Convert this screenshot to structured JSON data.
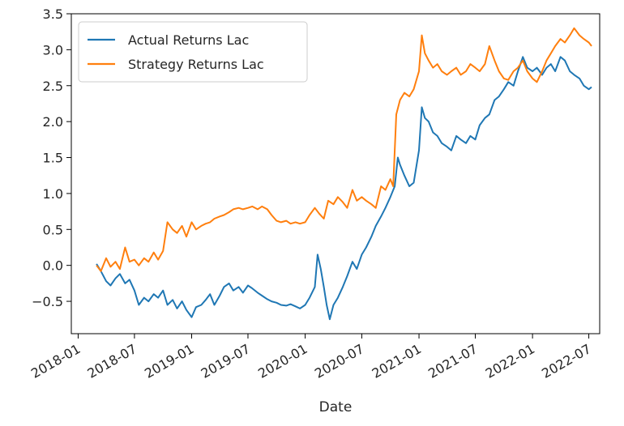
{
  "chart_data": {
    "type": "line",
    "title": "",
    "xlabel": "Date",
    "ylabel": "",
    "xlim": [
      "2017-12-10",
      "2022-08-05"
    ],
    "ylim": [
      -0.95,
      3.5
    ],
    "x_ticks": [
      "2018-01",
      "2018-07",
      "2019-01",
      "2019-07",
      "2020-01",
      "2020-07",
      "2021-01",
      "2021-07",
      "2022-01",
      "2022-07"
    ],
    "y_ticks": [
      "-0.5",
      "0.0",
      "0.5",
      "1.0",
      "1.5",
      "2.0",
      "2.5",
      "3.0",
      "3.5"
    ],
    "grid": false,
    "legend_position": "top-left",
    "series": [
      {
        "name": "Actual Returns Lac",
        "color": "#1f77b4",
        "points": [
          [
            "2018-03-01",
            0.02
          ],
          [
            "2018-03-15",
            -0.08
          ],
          [
            "2018-04-01",
            -0.22
          ],
          [
            "2018-04-15",
            -0.28
          ],
          [
            "2018-05-01",
            -0.18
          ],
          [
            "2018-05-15",
            -0.12
          ],
          [
            "2018-06-01",
            -0.25
          ],
          [
            "2018-06-15",
            -0.2
          ],
          [
            "2018-07-01",
            -0.35
          ],
          [
            "2018-07-15",
            -0.55
          ],
          [
            "2018-08-01",
            -0.45
          ],
          [
            "2018-08-15",
            -0.5
          ],
          [
            "2018-09-01",
            -0.4
          ],
          [
            "2018-09-15",
            -0.45
          ],
          [
            "2018-10-01",
            -0.35
          ],
          [
            "2018-10-15",
            -0.55
          ],
          [
            "2018-11-01",
            -0.48
          ],
          [
            "2018-11-15",
            -0.6
          ],
          [
            "2018-12-01",
            -0.5
          ],
          [
            "2018-12-15",
            -0.62
          ],
          [
            "2019-01-01",
            -0.72
          ],
          [
            "2019-01-15",
            -0.58
          ],
          [
            "2019-02-01",
            -0.55
          ],
          [
            "2019-02-15",
            -0.48
          ],
          [
            "2019-03-01",
            -0.4
          ],
          [
            "2019-03-15",
            -0.55
          ],
          [
            "2019-04-01",
            -0.42
          ],
          [
            "2019-04-15",
            -0.3
          ],
          [
            "2019-05-01",
            -0.25
          ],
          [
            "2019-05-15",
            -0.35
          ],
          [
            "2019-06-01",
            -0.3
          ],
          [
            "2019-06-15",
            -0.38
          ],
          [
            "2019-07-01",
            -0.28
          ],
          [
            "2019-07-15",
            -0.32
          ],
          [
            "2019-08-01",
            -0.38
          ],
          [
            "2019-08-15",
            -0.42
          ],
          [
            "2019-09-01",
            -0.47
          ],
          [
            "2019-09-15",
            -0.5
          ],
          [
            "2019-10-01",
            -0.52
          ],
          [
            "2019-10-15",
            -0.55
          ],
          [
            "2019-11-01",
            -0.56
          ],
          [
            "2019-11-15",
            -0.54
          ],
          [
            "2019-12-01",
            -0.57
          ],
          [
            "2019-12-15",
            -0.6
          ],
          [
            "2020-01-01",
            -0.55
          ],
          [
            "2020-01-15",
            -0.45
          ],
          [
            "2020-02-01",
            -0.3
          ],
          [
            "2020-02-10",
            0.15
          ],
          [
            "2020-02-20",
            -0.05
          ],
          [
            "2020-03-01",
            -0.3
          ],
          [
            "2020-03-10",
            -0.55
          ],
          [
            "2020-03-20",
            -0.75
          ],
          [
            "2020-04-01",
            -0.55
          ],
          [
            "2020-04-15",
            -0.45
          ],
          [
            "2020-05-01",
            -0.3
          ],
          [
            "2020-05-15",
            -0.15
          ],
          [
            "2020-06-01",
            0.05
          ],
          [
            "2020-06-15",
            -0.05
          ],
          [
            "2020-07-01",
            0.15
          ],
          [
            "2020-07-15",
            0.25
          ],
          [
            "2020-08-01",
            0.4
          ],
          [
            "2020-08-15",
            0.55
          ],
          [
            "2020-09-01",
            0.68
          ],
          [
            "2020-09-15",
            0.8
          ],
          [
            "2020-10-01",
            0.95
          ],
          [
            "2020-10-15",
            1.1
          ],
          [
            "2020-10-25",
            1.5
          ],
          [
            "2020-11-01",
            1.4
          ],
          [
            "2020-11-15",
            1.25
          ],
          [
            "2020-12-01",
            1.1
          ],
          [
            "2020-12-15",
            1.15
          ],
          [
            "2021-01-01",
            1.6
          ],
          [
            "2021-01-10",
            2.2
          ],
          [
            "2021-01-20",
            2.05
          ],
          [
            "2021-02-01",
            2.0
          ],
          [
            "2021-02-15",
            1.85
          ],
          [
            "2021-03-01",
            1.8
          ],
          [
            "2021-03-15",
            1.7
          ],
          [
            "2021-04-01",
            1.65
          ],
          [
            "2021-04-15",
            1.6
          ],
          [
            "2021-05-01",
            1.8
          ],
          [
            "2021-05-15",
            1.75
          ],
          [
            "2021-06-01",
            1.7
          ],
          [
            "2021-06-15",
            1.8
          ],
          [
            "2021-07-01",
            1.75
          ],
          [
            "2021-07-15",
            1.95
          ],
          [
            "2021-08-01",
            2.05
          ],
          [
            "2021-08-15",
            2.1
          ],
          [
            "2021-09-01",
            2.3
          ],
          [
            "2021-09-15",
            2.35
          ],
          [
            "2021-10-01",
            2.45
          ],
          [
            "2021-10-15",
            2.55
          ],
          [
            "2021-11-01",
            2.5
          ],
          [
            "2021-11-15",
            2.7
          ],
          [
            "2021-12-01",
            2.9
          ],
          [
            "2021-12-15",
            2.75
          ],
          [
            "2022-01-01",
            2.7
          ],
          [
            "2022-01-15",
            2.75
          ],
          [
            "2022-02-01",
            2.65
          ],
          [
            "2022-02-15",
            2.75
          ],
          [
            "2022-03-01",
            2.8
          ],
          [
            "2022-03-15",
            2.7
          ],
          [
            "2022-04-01",
            2.9
          ],
          [
            "2022-04-15",
            2.85
          ],
          [
            "2022-05-01",
            2.7
          ],
          [
            "2022-05-15",
            2.65
          ],
          [
            "2022-06-01",
            2.6
          ],
          [
            "2022-06-15",
            2.5
          ],
          [
            "2022-07-01",
            2.45
          ],
          [
            "2022-07-10",
            2.48
          ]
        ]
      },
      {
        "name": "Strategy Returns Lac",
        "color": "#ff7f0e",
        "points": [
          [
            "2018-03-01",
            0.0
          ],
          [
            "2018-03-15",
            -0.08
          ],
          [
            "2018-04-01",
            0.1
          ],
          [
            "2018-04-15",
            -0.02
          ],
          [
            "2018-05-01",
            0.05
          ],
          [
            "2018-05-15",
            -0.05
          ],
          [
            "2018-06-01",
            0.25
          ],
          [
            "2018-06-15",
            0.05
          ],
          [
            "2018-07-01",
            0.08
          ],
          [
            "2018-07-15",
            0.0
          ],
          [
            "2018-08-01",
            0.1
          ],
          [
            "2018-08-15",
            0.05
          ],
          [
            "2018-09-01",
            0.18
          ],
          [
            "2018-09-15",
            0.08
          ],
          [
            "2018-10-01",
            0.2
          ],
          [
            "2018-10-15",
            0.6
          ],
          [
            "2018-11-01",
            0.5
          ],
          [
            "2018-11-15",
            0.45
          ],
          [
            "2018-12-01",
            0.55
          ],
          [
            "2018-12-15",
            0.4
          ],
          [
            "2019-01-01",
            0.6
          ],
          [
            "2019-01-15",
            0.5
          ],
          [
            "2019-02-01",
            0.55
          ],
          [
            "2019-02-15",
            0.58
          ],
          [
            "2019-03-01",
            0.6
          ],
          [
            "2019-03-15",
            0.65
          ],
          [
            "2019-04-01",
            0.68
          ],
          [
            "2019-04-15",
            0.7
          ],
          [
            "2019-05-01",
            0.74
          ],
          [
            "2019-05-15",
            0.78
          ],
          [
            "2019-06-01",
            0.8
          ],
          [
            "2019-06-15",
            0.78
          ],
          [
            "2019-07-01",
            0.8
          ],
          [
            "2019-07-15",
            0.82
          ],
          [
            "2019-08-01",
            0.78
          ],
          [
            "2019-08-15",
            0.82
          ],
          [
            "2019-09-01",
            0.78
          ],
          [
            "2019-09-15",
            0.7
          ],
          [
            "2019-10-01",
            0.62
          ],
          [
            "2019-10-15",
            0.6
          ],
          [
            "2019-11-01",
            0.62
          ],
          [
            "2019-11-15",
            0.58
          ],
          [
            "2019-12-01",
            0.6
          ],
          [
            "2019-12-15",
            0.58
          ],
          [
            "2020-01-01",
            0.6
          ],
          [
            "2020-01-15",
            0.7
          ],
          [
            "2020-02-01",
            0.8
          ],
          [
            "2020-02-15",
            0.72
          ],
          [
            "2020-03-01",
            0.65
          ],
          [
            "2020-03-15",
            0.9
          ],
          [
            "2020-04-01",
            0.85
          ],
          [
            "2020-04-15",
            0.95
          ],
          [
            "2020-05-01",
            0.88
          ],
          [
            "2020-05-15",
            0.8
          ],
          [
            "2020-06-01",
            1.05
          ],
          [
            "2020-06-15",
            0.9
          ],
          [
            "2020-07-01",
            0.95
          ],
          [
            "2020-07-15",
            0.9
          ],
          [
            "2020-08-01",
            0.85
          ],
          [
            "2020-08-15",
            0.8
          ],
          [
            "2020-09-01",
            1.1
          ],
          [
            "2020-09-15",
            1.05
          ],
          [
            "2020-10-01",
            1.2
          ],
          [
            "2020-10-10",
            1.1
          ],
          [
            "2020-10-20",
            2.1
          ],
          [
            "2020-11-01",
            2.3
          ],
          [
            "2020-11-15",
            2.4
          ],
          [
            "2020-12-01",
            2.35
          ],
          [
            "2020-12-15",
            2.45
          ],
          [
            "2021-01-01",
            2.7
          ],
          [
            "2021-01-10",
            3.2
          ],
          [
            "2021-01-20",
            2.95
          ],
          [
            "2021-02-01",
            2.85
          ],
          [
            "2021-02-15",
            2.75
          ],
          [
            "2021-03-01",
            2.8
          ],
          [
            "2021-03-15",
            2.7
          ],
          [
            "2021-04-01",
            2.65
          ],
          [
            "2021-04-15",
            2.7
          ],
          [
            "2021-05-01",
            2.75
          ],
          [
            "2021-05-15",
            2.65
          ],
          [
            "2021-06-01",
            2.7
          ],
          [
            "2021-06-15",
            2.8
          ],
          [
            "2021-07-01",
            2.75
          ],
          [
            "2021-07-15",
            2.7
          ],
          [
            "2021-08-01",
            2.8
          ],
          [
            "2021-08-15",
            3.05
          ],
          [
            "2021-09-01",
            2.85
          ],
          [
            "2021-09-15",
            2.7
          ],
          [
            "2021-10-01",
            2.6
          ],
          [
            "2021-10-15",
            2.58
          ],
          [
            "2021-11-01",
            2.7
          ],
          [
            "2021-11-15",
            2.75
          ],
          [
            "2021-12-01",
            2.85
          ],
          [
            "2021-12-15",
            2.7
          ],
          [
            "2022-01-01",
            2.6
          ],
          [
            "2022-01-15",
            2.55
          ],
          [
            "2022-02-01",
            2.7
          ],
          [
            "2022-02-15",
            2.85
          ],
          [
            "2022-03-01",
            2.95
          ],
          [
            "2022-03-15",
            3.05
          ],
          [
            "2022-04-01",
            3.15
          ],
          [
            "2022-04-15",
            3.1
          ],
          [
            "2022-05-01",
            3.2
          ],
          [
            "2022-05-15",
            3.3
          ],
          [
            "2022-06-01",
            3.2
          ],
          [
            "2022-06-15",
            3.15
          ],
          [
            "2022-07-01",
            3.1
          ],
          [
            "2022-07-10",
            3.05
          ]
        ]
      }
    ]
  }
}
